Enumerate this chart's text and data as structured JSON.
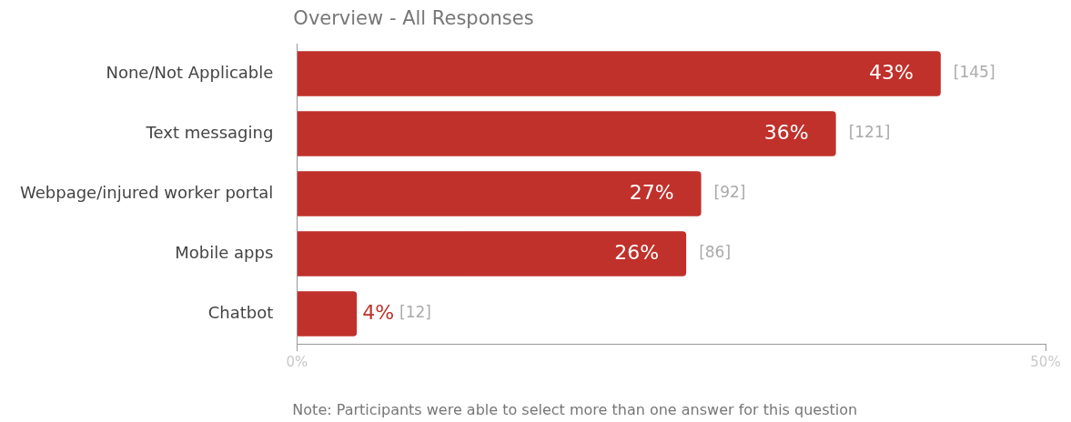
{
  "chart_data": {
    "type": "bar",
    "orientation": "horizontal",
    "title": "Overview - All Responses",
    "categories": [
      "None/Not Applicable",
      "Text messaging",
      "Webpage/injured worker portal",
      "Mobile apps",
      "Chatbot"
    ],
    "values": [
      43,
      36,
      27,
      26,
      4
    ],
    "value_labels": [
      "43%",
      "36%",
      "27%",
      "26%",
      "4%"
    ],
    "color": "#c0312b",
    "xlim": [
      0,
      50
    ],
    "xticks": [
      {
        "value": 0,
        "label": "0%"
      },
      {
        "value": 50,
        "label": "50%"
      }
    ],
    "grid": false,
    "legend": false,
    "annotations": [
      {
        "text": "[145]",
        "x": 43,
        "y": "None/Not Applicable"
      },
      {
        "text": "[121]",
        "x": 36,
        "y": "Text messaging"
      },
      {
        "text": "[92]",
        "x": 27,
        "y": "Webpage/injured worker portal"
      },
      {
        "text": "[86]",
        "x": 26,
        "y": "Mobile apps"
      },
      {
        "text": "[12]",
        "x": 4,
        "y": "Chatbot"
      },
      "Note: Participants were able to select more than one answer for this question"
    ]
  }
}
